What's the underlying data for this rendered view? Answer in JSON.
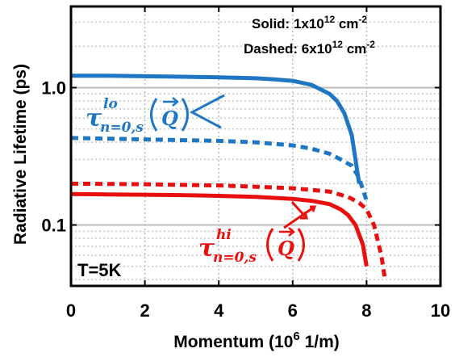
{
  "chart_data": {
    "type": "line",
    "xlabel": "Momentum (10",
    "xlabel_sup": "6",
    "xlabel_tail": " 1/m)",
    "ylabel": "Radiative Lifetime (ps)",
    "xlim": [
      0,
      10
    ],
    "ylim": [
      0.036,
      3.9
    ],
    "yscale": "log",
    "grid": true,
    "x_ticks": [
      0,
      2,
      4,
      6,
      8,
      10
    ],
    "x_tick_labels": [
      "0",
      "2",
      "4",
      "6",
      "8",
      "10"
    ],
    "y_ticks": [
      0.1,
      1.0
    ],
    "y_tick_labels": [
      "0.1",
      "1.0"
    ],
    "legend": {
      "solid": {
        "prefix": "Solid: 1x10",
        "sup": "12",
        "unit": " cm",
        "unit_sup": "-2"
      },
      "dashed": {
        "prefix": "Dashed: 6x10",
        "sup": "12",
        "unit": " cm",
        "unit_sup": "-2"
      }
    },
    "temperature_label": "T=5K",
    "colors": {
      "lo": "#1f77c4",
      "hi": "#e8100e"
    },
    "annotations": {
      "lo": {
        "tau": "τ",
        "sup": "lo",
        "sub": "n=0,s",
        "arg": "Q"
      },
      "hi": {
        "tau": "τ",
        "sup": "hi",
        "sub": "n=0,s",
        "arg": "Q"
      }
    },
    "series": [
      {
        "branch": "lo",
        "style": "solid",
        "x": [
          0,
          1,
          2,
          3,
          4,
          5,
          5.5,
          6,
          6.5,
          7,
          7.2,
          7.4,
          7.6,
          7.8
        ],
        "y": [
          1.22,
          1.22,
          1.21,
          1.2,
          1.19,
          1.17,
          1.15,
          1.12,
          1.05,
          0.9,
          0.8,
          0.65,
          0.45,
          0.2
        ]
      },
      {
        "branch": "lo",
        "style": "dashed",
        "x": [
          0,
          1,
          2,
          3,
          4,
          5,
          6,
          6.5,
          7,
          7.3,
          7.6,
          7.8,
          8.0
        ],
        "y": [
          0.43,
          0.425,
          0.42,
          0.415,
          0.41,
          0.4,
          0.38,
          0.36,
          0.33,
          0.3,
          0.27,
          0.22,
          0.15
        ]
      },
      {
        "branch": "hi",
        "style": "dashed",
        "x": [
          0,
          1,
          2,
          3,
          4,
          5,
          6,
          6.5,
          7,
          7.5,
          7.8,
          8.0,
          8.2,
          8.4,
          8.5
        ],
        "y": [
          0.2,
          0.199,
          0.198,
          0.196,
          0.194,
          0.19,
          0.185,
          0.18,
          0.175,
          0.16,
          0.145,
          0.13,
          0.1,
          0.06,
          0.04
        ]
      },
      {
        "branch": "hi",
        "style": "solid",
        "x": [
          0,
          1,
          2,
          3,
          4,
          5,
          6,
          6.5,
          7,
          7.3,
          7.5,
          7.7,
          7.9,
          8.0
        ],
        "y": [
          0.168,
          0.167,
          0.166,
          0.165,
          0.163,
          0.16,
          0.155,
          0.15,
          0.142,
          0.13,
          0.118,
          0.1,
          0.072,
          0.05
        ]
      }
    ]
  }
}
